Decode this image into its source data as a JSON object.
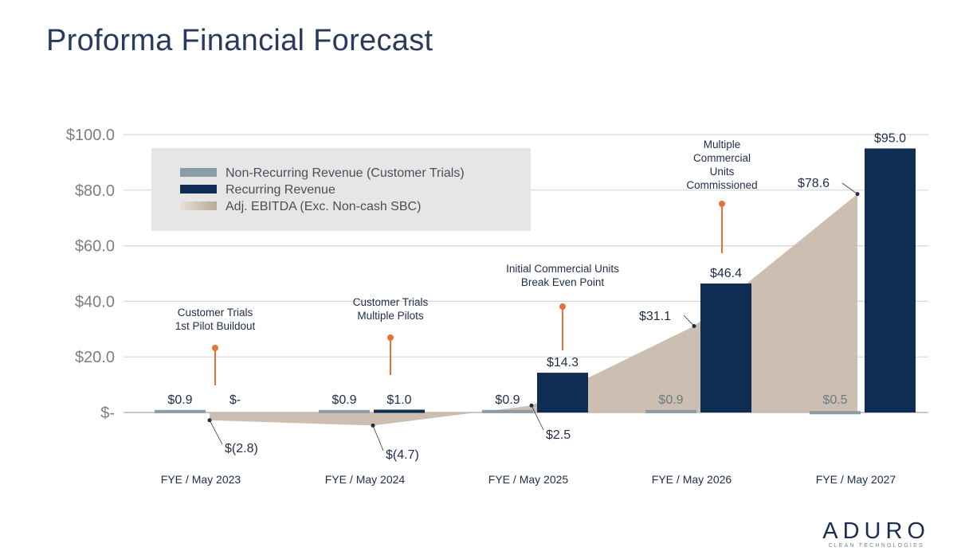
{
  "page": {
    "title": "Proforma Financial Forecast"
  },
  "brand": {
    "name": "ADURO",
    "tagline": "CLEAN TECHNOLOGIES"
  },
  "colors": {
    "non_recurring": "#8a9ca5",
    "recurring": "#0f2c52",
    "ebitda": "#c9bcad",
    "gridline": "#d6d6d6",
    "axis_text": "#7d7f82",
    "marker": "#e57339",
    "legend_bg": "#e6e6e6"
  },
  "chart_data": {
    "type": "bar",
    "title": "Proforma Financial Forecast",
    "ylim": [
      0,
      100
    ],
    "y_ticks": [
      {
        "value": 0,
        "label": "$-"
      },
      {
        "value": 20,
        "label": "$20.0"
      },
      {
        "value": 40,
        "label": "$40.0"
      },
      {
        "value": 60,
        "label": "$60.0"
      },
      {
        "value": 80,
        "label": "$80.0"
      },
      {
        "value": 100,
        "label": "$100.0"
      }
    ],
    "categories": [
      "FYE / May 2023",
      "FYE / May 2024",
      "FYE / May 2025",
      "FYE / May 2026",
      "FYE / May 2027"
    ],
    "series": [
      {
        "name": "Non-Recurring Revenue (Customer Trials)",
        "type": "bar",
        "values": [
          0.9,
          0.9,
          0.9,
          0.9,
          0.5
        ],
        "labels": [
          "$0.9",
          "$0.9",
          "$0.9",
          "$0.9",
          "$0.5"
        ]
      },
      {
        "name": "Recurring Revenue",
        "type": "bar",
        "values": [
          0,
          1.0,
          14.3,
          46.4,
          95.0
        ],
        "labels": [
          "$-",
          "$1.0",
          "$14.3",
          "$46.4",
          "$95.0"
        ]
      },
      {
        "name": "Adj. EBITDA (Exc. Non-cash SBC)",
        "type": "area",
        "values": [
          -2.8,
          -4.7,
          2.5,
          31.1,
          78.6
        ],
        "labels": [
          "$(2.8)",
          "$(4.7)",
          "$2.5",
          "$31.1",
          "$78.6"
        ]
      }
    ],
    "annotations": [
      {
        "category": 0,
        "lines": [
          "Customer Trials",
          "1st Pilot Buildout"
        ]
      },
      {
        "category": 1,
        "lines": [
          "Customer Trials",
          "Multiple Pilots"
        ]
      },
      {
        "category": 2,
        "lines": [
          "Initial Commercial Units",
          "Break Even Point"
        ]
      },
      {
        "category": 3,
        "lines": [
          "Multiple",
          "Commercial",
          "Units",
          "Commissioned"
        ]
      }
    ],
    "legend_placement": "top-left"
  }
}
